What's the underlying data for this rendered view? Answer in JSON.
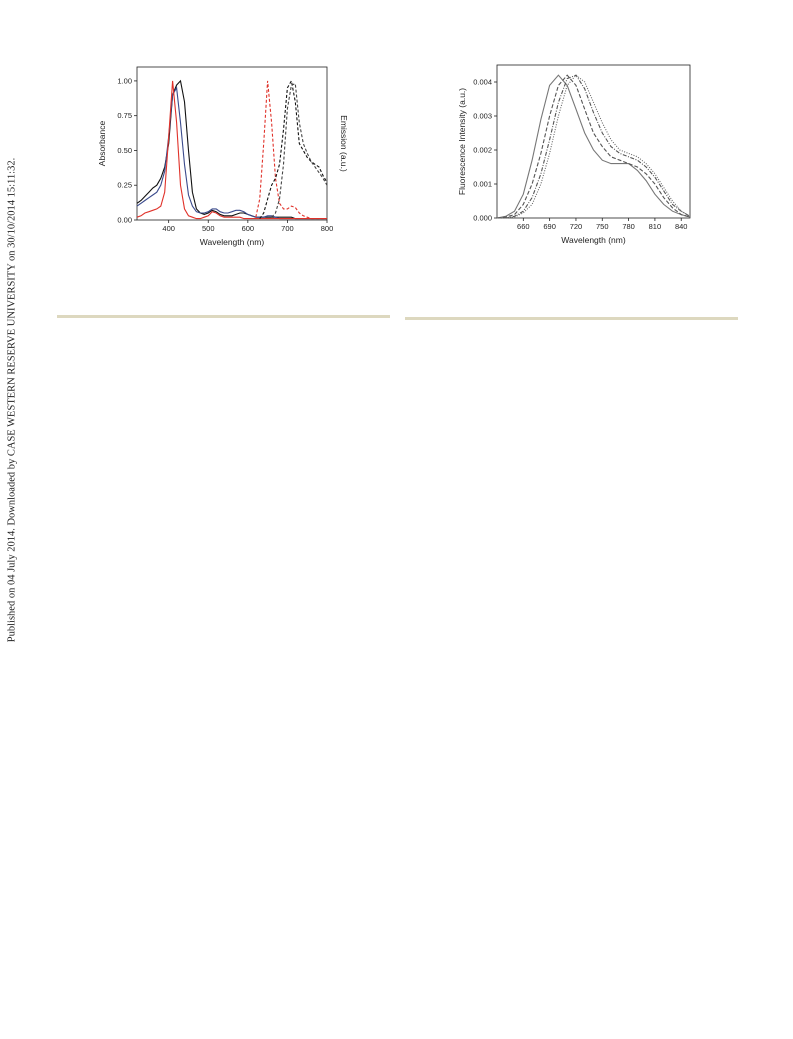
{
  "watermark": "Published on 04 July 2014. Downloaded by CASE WESTERN RESERVE UNIVERSITY on 30/10/2014 15:11:32.",
  "chart_data": [
    {
      "type": "line",
      "x_label": "Wavelength (nm)",
      "y_label": "Absorbance",
      "y2_label": "Emission (a.u.)",
      "xlim": [
        320,
        800
      ],
      "xticks": [
        400,
        500,
        600,
        700,
        800
      ],
      "ylim": [
        0,
        1.1
      ],
      "yticks": [
        {
          "value": 0,
          "label": "0.00"
        },
        {
          "value": 0.25,
          "label": "0.25"
        },
        {
          "value": 0.5,
          "label": "0.50"
        },
        {
          "value": 0.75,
          "label": "0.75"
        },
        {
          "value": 1,
          "label": "1.00"
        }
      ],
      "grid": false,
      "x": [
        320,
        330,
        340,
        350,
        360,
        370,
        380,
        390,
        400,
        410,
        420,
        430,
        440,
        450,
        460,
        470,
        480,
        490,
        500,
        510,
        520,
        530,
        540,
        550,
        560,
        570,
        580,
        590,
        600,
        610,
        620,
        630,
        640,
        650,
        660,
        670,
        680,
        690,
        700,
        710,
        720,
        730,
        740,
        750,
        760,
        770,
        780,
        790,
        800
      ],
      "series": [
        {
          "color": "#111111",
          "dash": "none",
          "values": [
            0.12,
            0.14,
            0.17,
            0.2,
            0.23,
            0.25,
            0.3,
            0.38,
            0.55,
            0.9,
            0.97,
            1.0,
            0.85,
            0.5,
            0.2,
            0.08,
            0.05,
            0.04,
            0.05,
            0.07,
            0.06,
            0.04,
            0.03,
            0.03,
            0.03,
            0.04,
            0.05,
            0.05,
            0.04,
            0.03,
            0.02,
            0.02,
            0.02,
            0.02,
            0.02,
            0.02,
            0.02,
            0.02,
            0.02,
            0.02,
            0.01,
            0.01,
            0.01,
            0.01,
            0.01,
            0.01,
            0.01,
            0.01,
            0.01
          ]
        },
        {
          "color": "#3a4a8c",
          "dash": "none",
          "values": [
            0.1,
            0.12,
            0.14,
            0.16,
            0.18,
            0.2,
            0.25,
            0.35,
            0.6,
            0.9,
            0.95,
            0.7,
            0.4,
            0.18,
            0.1,
            0.06,
            0.05,
            0.05,
            0.06,
            0.08,
            0.08,
            0.06,
            0.05,
            0.05,
            0.06,
            0.07,
            0.07,
            0.06,
            0.04,
            0.03,
            0.02,
            0.02,
            0.02,
            0.03,
            0.03,
            0.02,
            0.01,
            0.01,
            0.01,
            0.01,
            0.01,
            0.01,
            0.01,
            0.01,
            0.01,
            0.01,
            0.01,
            0.01,
            0.01
          ]
        },
        {
          "color": "#e0322a",
          "dash": "none",
          "values": [
            0.02,
            0.03,
            0.05,
            0.06,
            0.07,
            0.08,
            0.1,
            0.2,
            0.6,
            1.0,
            0.7,
            0.25,
            0.08,
            0.03,
            0.02,
            0.01,
            0.01,
            0.02,
            0.03,
            0.06,
            0.05,
            0.03,
            0.02,
            0.02,
            0.02,
            0.02,
            0.02,
            0.01,
            0.01,
            0.01,
            0.01,
            0.01,
            0.01,
            0.01,
            0.01,
            0.01,
            0.01,
            0.01,
            0.01,
            0.01,
            0.01,
            0.01,
            0.01,
            0.01,
            0.01,
            0.01,
            0.01,
            0.01,
            0.01
          ]
        },
        {
          "color": "#e0322a",
          "dash": "3,2",
          "values": [
            null,
            null,
            null,
            null,
            null,
            null,
            null,
            null,
            null,
            null,
            null,
            null,
            null,
            null,
            null,
            null,
            null,
            null,
            null,
            null,
            null,
            null,
            null,
            null,
            null,
            null,
            null,
            null,
            null,
            null,
            0.02,
            0.15,
            0.55,
            1.0,
            0.7,
            0.3,
            0.12,
            0.08,
            0.08,
            0.1,
            0.09,
            0.05,
            0.03,
            0.02,
            0.01,
            0.01,
            0.01,
            0.01,
            0.01
          ]
        },
        {
          "color": "#111111",
          "dash": "3,2",
          "values": [
            null,
            null,
            null,
            null,
            null,
            null,
            null,
            null,
            null,
            null,
            null,
            null,
            null,
            null,
            null,
            null,
            null,
            null,
            null,
            null,
            null,
            null,
            null,
            null,
            null,
            null,
            null,
            null,
            null,
            null,
            null,
            0.01,
            0.05,
            0.15,
            0.25,
            0.3,
            0.4,
            0.65,
            0.95,
            1.0,
            0.85,
            0.55,
            0.5,
            0.45,
            0.42,
            0.4,
            0.38,
            0.32,
            0.27
          ]
        },
        {
          "color": "#444444",
          "dash": "3,2",
          "values": [
            null,
            null,
            null,
            null,
            null,
            null,
            null,
            null,
            null,
            null,
            null,
            null,
            null,
            null,
            null,
            null,
            null,
            null,
            null,
            null,
            null,
            null,
            null,
            null,
            null,
            null,
            null,
            null,
            null,
            null,
            null,
            null,
            null,
            null,
            0.02,
            0.05,
            0.15,
            0.4,
            0.8,
            0.97,
            0.98,
            0.7,
            0.55,
            0.48,
            0.42,
            0.38,
            0.34,
            0.3,
            0.25
          ]
        }
      ]
    },
    {
      "type": "line",
      "x_label": "Wavelength (nm)",
      "y_label": "Fluorescence Intensity (a.u.)",
      "xlim": [
        630,
        850
      ],
      "xticks": [
        660,
        690,
        720,
        750,
        780,
        810,
        840
      ],
      "ylim": [
        0,
        0.0045
      ],
      "yticks": [
        {
          "value": 0,
          "label": "0.000"
        },
        0.001,
        0.002,
        0.003,
        0.004
      ],
      "grid": false,
      "x": [
        630,
        640,
        650,
        660,
        670,
        680,
        690,
        700,
        710,
        720,
        730,
        740,
        750,
        760,
        770,
        780,
        790,
        800,
        810,
        820,
        830,
        840,
        850
      ],
      "series": [
        {
          "color": "#777777",
          "dash": "none",
          "values": [
            0,
            5e-05,
            0.0002,
            0.0007,
            0.0017,
            0.0029,
            0.0039,
            0.0042,
            0.0039,
            0.0032,
            0.0025,
            0.002,
            0.0017,
            0.0016,
            0.0016,
            0.0016,
            0.0014,
            0.0011,
            0.0007,
            0.0004,
            0.0002,
            0.0001,
            3e-05
          ]
        },
        {
          "color": "#555555",
          "dash": "4,2",
          "values": [
            0,
            3e-05,
            0.0001,
            0.0004,
            0.001,
            0.0019,
            0.003,
            0.0039,
            0.0042,
            0.0039,
            0.0032,
            0.0025,
            0.0021,
            0.0018,
            0.0017,
            0.0016,
            0.0015,
            0.0013,
            0.001,
            0.0006,
            0.0003,
            0.0001,
            3e-05
          ]
        },
        {
          "color": "#555555",
          "dash": "4,1.5,1,1.5",
          "values": [
            0,
            0,
            5e-05,
            0.0002,
            0.0006,
            0.0013,
            0.0023,
            0.0034,
            0.0041,
            0.0042,
            0.0038,
            0.0031,
            0.0025,
            0.0021,
            0.0019,
            0.0018,
            0.0017,
            0.0015,
            0.0012,
            0.0008,
            0.0004,
            0.0002,
            5e-05
          ]
        },
        {
          "color": "#666666",
          "dash": "1,1.5",
          "values": [
            0,
            0,
            3e-05,
            0.00015,
            0.0004,
            0.001,
            0.0019,
            0.003,
            0.0039,
            0.0042,
            0.004,
            0.0034,
            0.0028,
            0.0023,
            0.002,
            0.0019,
            0.0018,
            0.0016,
            0.0013,
            0.0009,
            0.0005,
            0.0002,
            5e-05
          ]
        }
      ]
    }
  ]
}
